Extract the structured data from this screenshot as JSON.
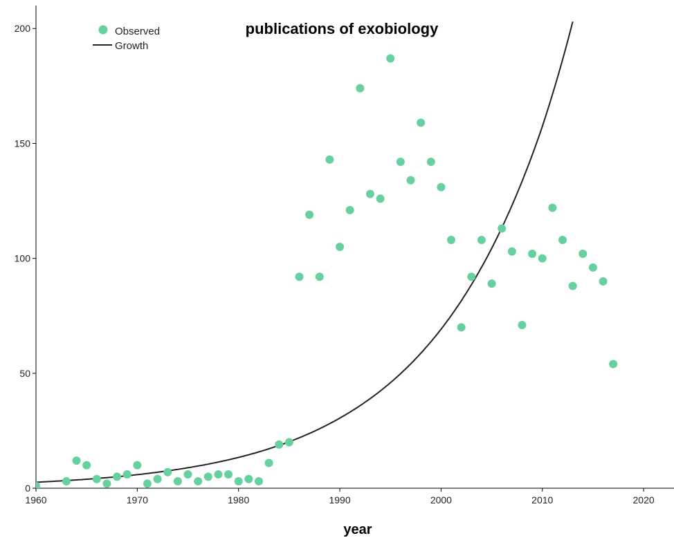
{
  "chart_data": {
    "type": "scatter",
    "title": "publications of exobiology",
    "xlabel": "year",
    "ylabel": "",
    "xlim": [
      1960,
      2023
    ],
    "ylim": [
      0,
      210
    ],
    "x_ticks": [
      1960,
      1970,
      1980,
      1990,
      2000,
      2010,
      2020
    ],
    "y_ticks": [
      0,
      50,
      100,
      150,
      200
    ],
    "grid": false,
    "legend_position": "top-left",
    "colors": {
      "observed": "#66d19e",
      "growth": "#222222"
    },
    "series": [
      {
        "name": "Observed",
        "kind": "scatter",
        "x": [
          1960,
          1963,
          1964,
          1965,
          1966,
          1967,
          1968,
          1969,
          1970,
          1971,
          1972,
          1973,
          1974,
          1975,
          1976,
          1977,
          1978,
          1979,
          1980,
          1981,
          1982,
          1983,
          1984,
          1985,
          1986,
          1987,
          1988,
          1989,
          1990,
          1991,
          1992,
          1993,
          1994,
          1995,
          1996,
          1997,
          1998,
          1999,
          2000,
          2001,
          2002,
          2003,
          2004,
          2005,
          2006,
          2007,
          2008,
          2009,
          2010,
          2011,
          2012,
          2013,
          2014,
          2015,
          2016,
          2017
        ],
        "y": [
          1,
          3,
          12,
          10,
          4,
          2,
          5,
          6,
          10,
          2,
          4,
          7,
          3,
          6,
          3,
          5,
          6,
          6,
          3,
          4,
          3,
          11,
          19,
          20,
          92,
          119,
          92,
          143,
          105,
          121,
          174,
          128,
          126,
          187,
          142,
          134,
          159,
          142,
          131,
          108,
          70,
          92,
          108,
          89,
          113,
          103,
          71,
          102,
          100,
          122,
          108,
          88,
          102,
          96,
          90,
          54
        ]
      },
      {
        "name": "Growth",
        "kind": "line",
        "x": [
          1960,
          1965,
          1970,
          1975,
          1980,
          1985,
          1990,
          1995,
          2000,
          2005,
          2010,
          2013
        ],
        "y": [
          2.6,
          3.9,
          5.9,
          8.9,
          13.4,
          20.2,
          30.5,
          45.9,
          69.2,
          104.4,
          157.4,
          203.0
        ]
      }
    ]
  }
}
